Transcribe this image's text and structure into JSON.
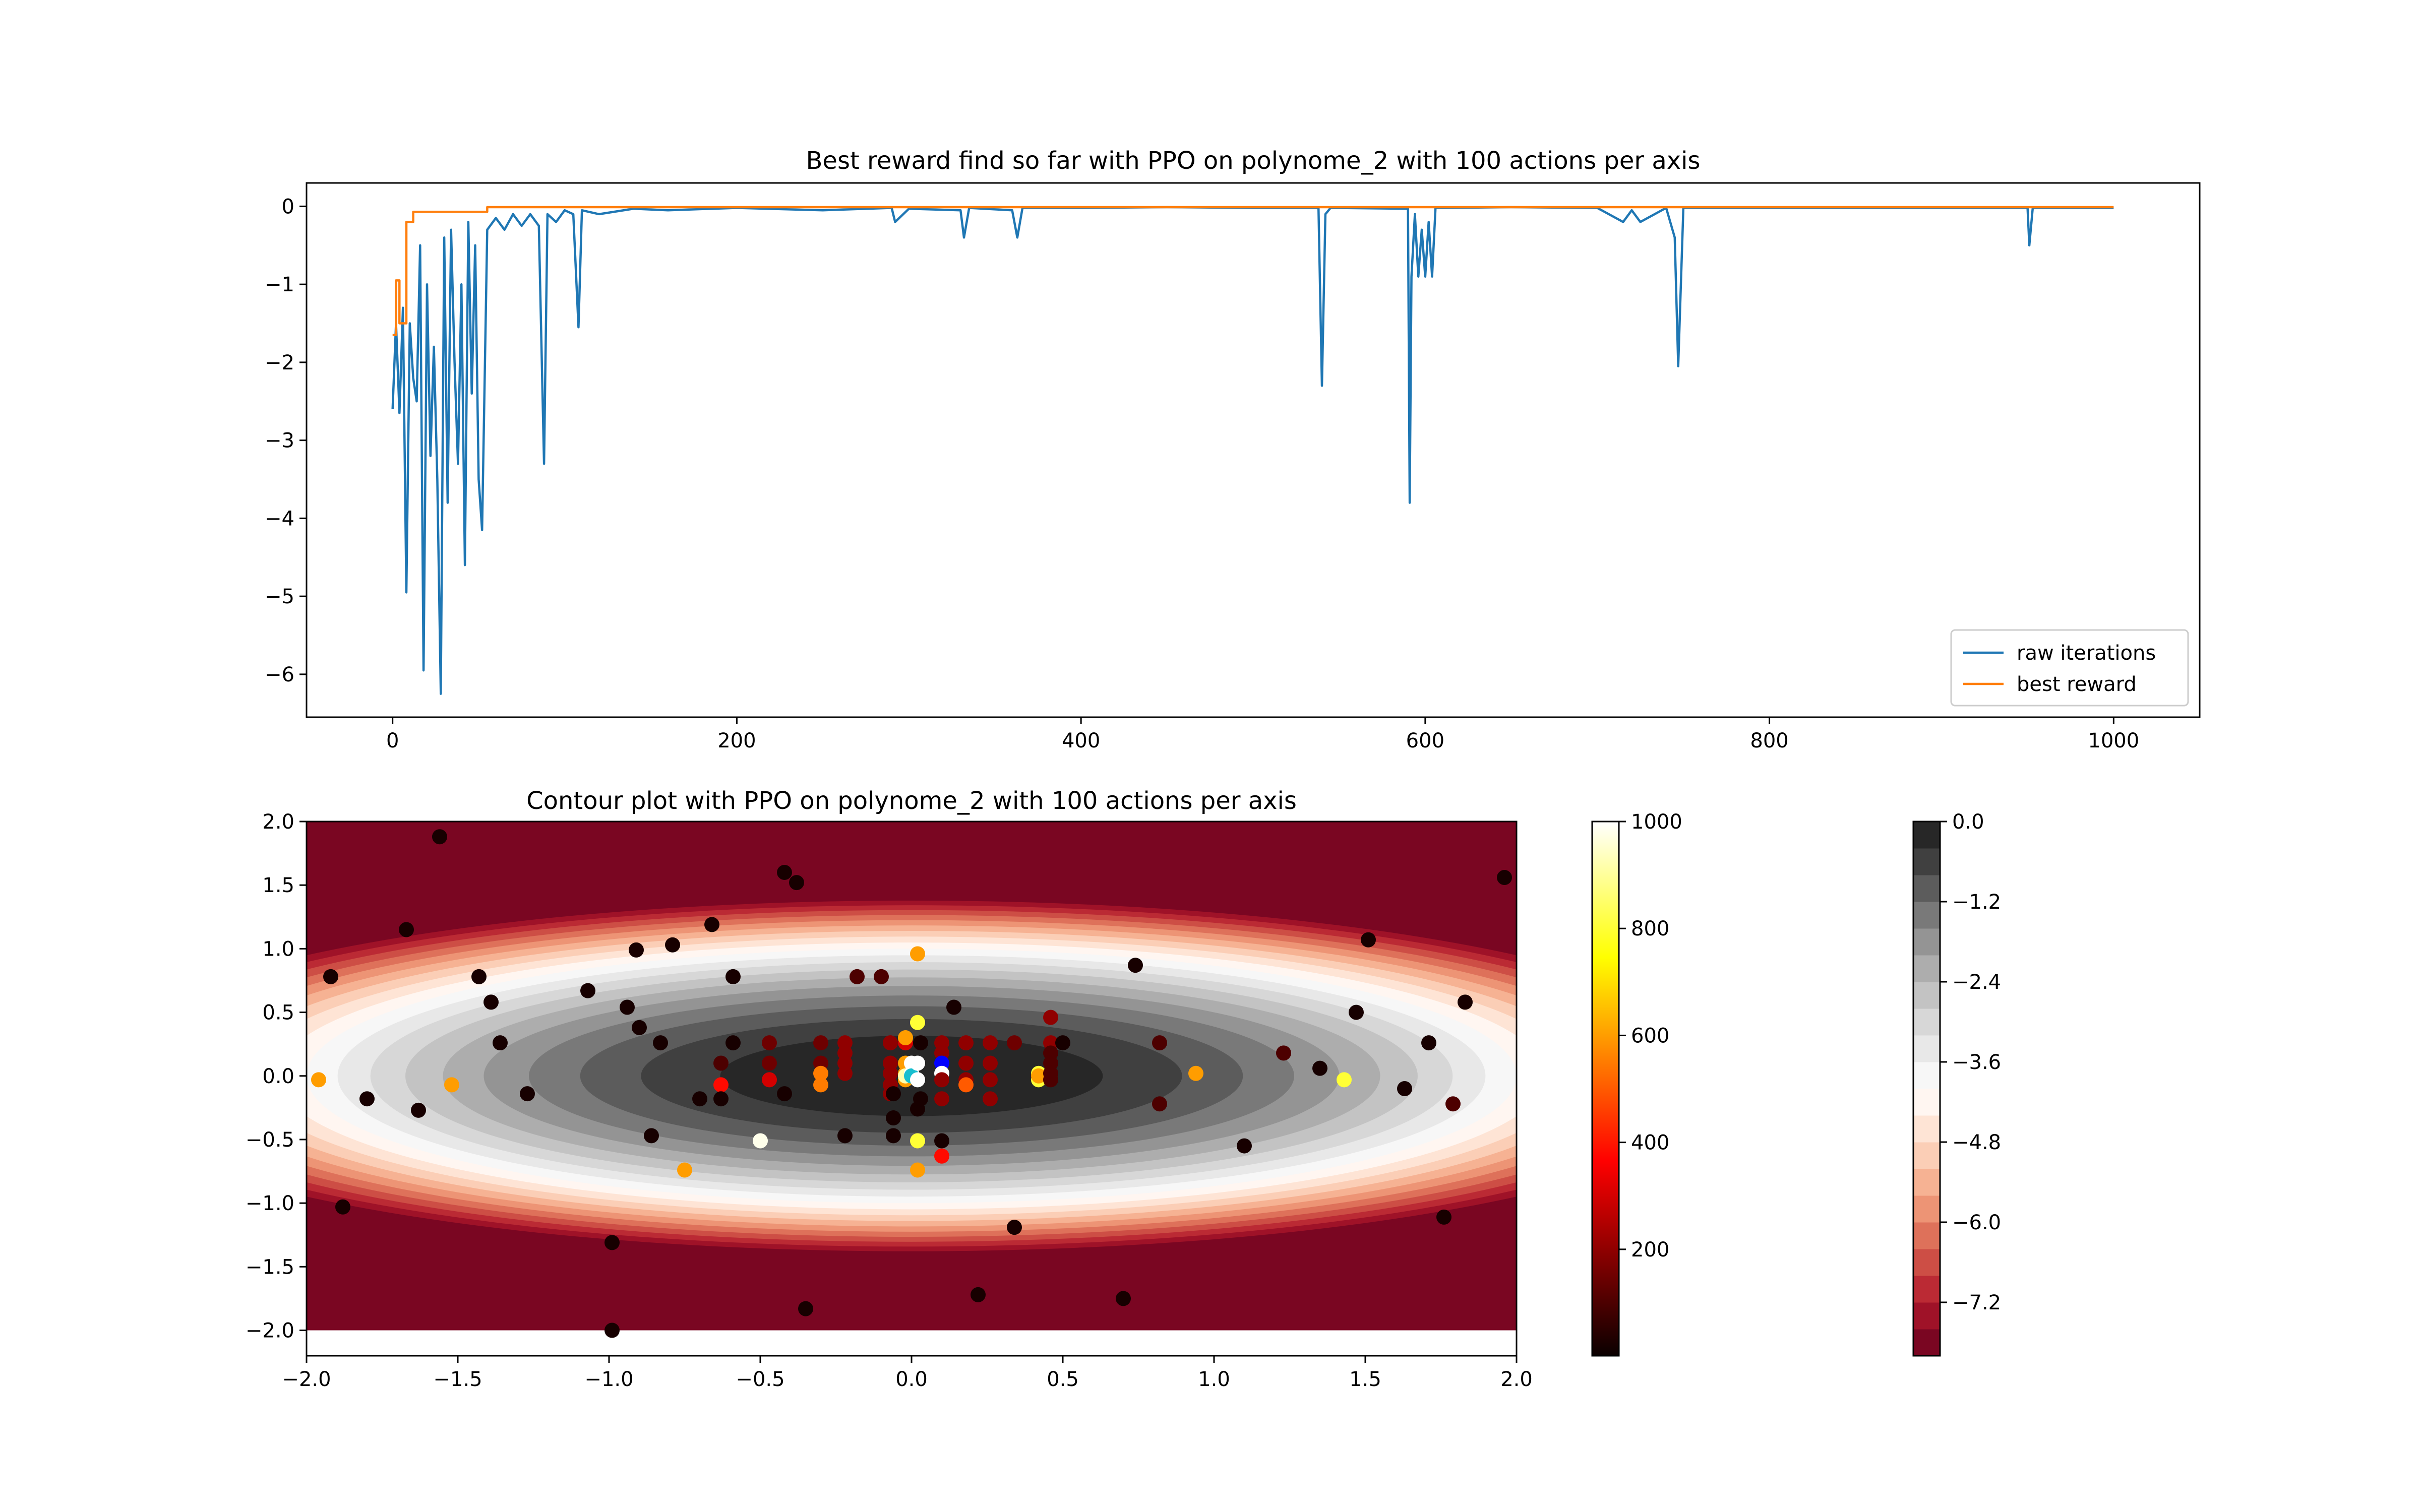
{
  "chart_data": [
    {
      "type": "line",
      "title": "Best reward find so far with PPO on polynome_2 with 100 actions per axis",
      "xlabel": "",
      "ylabel": "",
      "xlim": [
        -50,
        1050
      ],
      "ylim": [
        -6.55,
        0.3
      ],
      "xticks": [
        0,
        200,
        400,
        600,
        800,
        1000
      ],
      "yticks": [
        0,
        -1,
        -2,
        -3,
        -4,
        -5,
        -6
      ],
      "grid": false,
      "legend_position": "lower right",
      "series": [
        {
          "name": "raw iterations",
          "color": "#1f77b4",
          "x": [
            0,
            2,
            4,
            6,
            8,
            10,
            12,
            14,
            16,
            18,
            20,
            22,
            24,
            26,
            28,
            30,
            32,
            34,
            36,
            38,
            40,
            42,
            44,
            46,
            48,
            50,
            52,
            55,
            60,
            65,
            70,
            75,
            80,
            85,
            88,
            90,
            95,
            100,
            105,
            108,
            110,
            120,
            140,
            160,
            200,
            250,
            290,
            292,
            300,
            330,
            332,
            335,
            360,
            363,
            366,
            400,
            450,
            500,
            538,
            540,
            542,
            545,
            590,
            591,
            592,
            594,
            596,
            598,
            600,
            602,
            604,
            606,
            610,
            650,
            700,
            715,
            720,
            725,
            740,
            745,
            747,
            750,
            800,
            900,
            950,
            951,
            953,
            1000
          ],
          "y": [
            -2.6,
            -1.5,
            -2.65,
            -1.3,
            -4.95,
            -1.5,
            -2.2,
            -2.5,
            -0.5,
            -5.95,
            -1.0,
            -3.2,
            -1.8,
            -3.5,
            -6.25,
            -0.4,
            -3.8,
            -0.3,
            -2.0,
            -3.3,
            -1.0,
            -4.6,
            -0.2,
            -2.4,
            -0.5,
            -3.5,
            -4.15,
            -0.3,
            -0.15,
            -0.3,
            -0.1,
            -0.25,
            -0.1,
            -0.25,
            -3.3,
            -0.1,
            -0.2,
            -0.05,
            -0.1,
            -1.55,
            -0.05,
            -0.1,
            -0.03,
            -0.05,
            -0.02,
            -0.05,
            -0.02,
            -0.2,
            -0.03,
            -0.05,
            -0.4,
            -0.02,
            -0.05,
            -0.4,
            -0.02,
            -0.02,
            -0.01,
            -0.02,
            -0.02,
            -2.3,
            -0.1,
            -0.02,
            -0.03,
            -3.8,
            -0.9,
            -0.1,
            -0.9,
            -0.3,
            -0.9,
            -0.2,
            -0.9,
            -0.02,
            -0.02,
            -0.01,
            -0.02,
            -0.2,
            -0.05,
            -0.2,
            -0.02,
            -0.4,
            -2.05,
            -0.02,
            -0.02,
            -0.02,
            -0.02,
            -0.5,
            -0.02,
            -0.02
          ]
        },
        {
          "name": "best reward",
          "color": "#ff7f0e",
          "x": [
            0,
            2,
            2,
            4,
            4,
            8,
            8,
            12,
            12,
            55,
            55,
            1000
          ],
          "y": [
            -1.65,
            -1.65,
            -0.95,
            -0.95,
            -1.5,
            -1.5,
            -0.2,
            -0.2,
            -0.07,
            -0.07,
            -0.01,
            -0.01
          ]
        }
      ]
    },
    {
      "type": "scatter",
      "title": "Contour plot with PPO on polynome_2 with 100 actions per axis",
      "xlabel": "",
      "ylabel": "",
      "xlim": [
        -2.0,
        2.0
      ],
      "ylim": [
        -2.2,
        2.0
      ],
      "xticks": [
        -2.0,
        -1.5,
        -1.0,
        -0.5,
        0.0,
        0.5,
        1.0,
        1.5,
        2.0
      ],
      "yticks": [
        2.0,
        1.5,
        1.0,
        0.5,
        0.0,
        -0.5,
        -1.0,
        -1.5,
        -2.0
      ],
      "grid": false,
      "contour": {
        "function": "-(x^2 + 4*y^2)",
        "levels": [
          -8.0,
          -7.6,
          -7.2,
          -6.8,
          -6.4,
          -6.0,
          -5.6,
          -5.2,
          -4.8,
          -4.4,
          -4.0,
          -3.6,
          -3.2,
          -2.8,
          -2.4,
          -2.0,
          -1.6,
          -1.2,
          -0.8,
          -0.4,
          0.0
        ],
        "colormap": "RdGy"
      },
      "points": [
        {
          "x": -1.56,
          "y": 1.88,
          "c": 20
        },
        {
          "x": -1.67,
          "y": 1.15,
          "c": 20
        },
        {
          "x": -1.92,
          "y": 0.78,
          "c": 20
        },
        {
          "x": -1.96,
          "y": -0.03,
          "c": 600
        },
        {
          "x": -1.8,
          "y": -0.18,
          "c": 20
        },
        {
          "x": -1.88,
          "y": -1.03,
          "c": 20
        },
        {
          "x": -1.63,
          "y": -0.27,
          "c": 20
        },
        {
          "x": -1.52,
          "y": -0.07,
          "c": 600
        },
        {
          "x": -1.43,
          "y": 0.78,
          "c": 20
        },
        {
          "x": -1.39,
          "y": 0.58,
          "c": 20
        },
        {
          "x": -1.36,
          "y": 0.26,
          "c": 20
        },
        {
          "x": -1.27,
          "y": -0.14,
          "c": 20
        },
        {
          "x": -1.07,
          "y": 0.67,
          "c": 20
        },
        {
          "x": -0.99,
          "y": -1.31,
          "c": 20
        },
        {
          "x": -0.99,
          "y": -2.0,
          "c": 20
        },
        {
          "x": -0.94,
          "y": 0.54,
          "c": 20
        },
        {
          "x": -0.91,
          "y": 0.99,
          "c": 20
        },
        {
          "x": -0.9,
          "y": 0.38,
          "c": 20
        },
        {
          "x": -0.86,
          "y": -0.47,
          "c": 20
        },
        {
          "x": -0.83,
          "y": 0.26,
          "c": 20
        },
        {
          "x": -0.79,
          "y": 1.03,
          "c": 20
        },
        {
          "x": -0.75,
          "y": -0.74,
          "c": 600
        },
        {
          "x": -0.7,
          "y": -0.18,
          "c": 20
        },
        {
          "x": -0.66,
          "y": 1.19,
          "c": 20
        },
        {
          "x": -0.63,
          "y": -0.07,
          "c": 380
        },
        {
          "x": -0.63,
          "y": -0.18,
          "c": 20
        },
        {
          "x": -0.63,
          "y": 0.1,
          "c": 100
        },
        {
          "x": -0.59,
          "y": 0.78,
          "c": 20
        },
        {
          "x": -0.59,
          "y": 0.26,
          "c": 20
        },
        {
          "x": -0.5,
          "y": -0.51,
          "c": 980
        },
        {
          "x": -0.47,
          "y": 0.26,
          "c": 150
        },
        {
          "x": -0.47,
          "y": 0.1,
          "c": 150
        },
        {
          "x": -0.47,
          "y": -0.03,
          "c": 300
        },
        {
          "x": -0.42,
          "y": -0.14,
          "c": 20
        },
        {
          "x": -0.42,
          "y": 1.6,
          "c": 20
        },
        {
          "x": -0.38,
          "y": 1.52,
          "c": 20
        },
        {
          "x": -0.35,
          "y": -1.83,
          "c": 20
        },
        {
          "x": -0.3,
          "y": 0.26,
          "c": 150
        },
        {
          "x": -0.3,
          "y": 0.1,
          "c": 150
        },
        {
          "x": -0.3,
          "y": 0.02,
          "c": 550
        },
        {
          "x": -0.3,
          "y": -0.07,
          "c": 550
        },
        {
          "x": -0.22,
          "y": 0.26,
          "c": 200
        },
        {
          "x": -0.22,
          "y": 0.18,
          "c": 200
        },
        {
          "x": -0.22,
          "y": 0.1,
          "c": 200
        },
        {
          "x": -0.22,
          "y": 0.02,
          "c": 200
        },
        {
          "x": -0.22,
          "y": -0.47,
          "c": 20
        },
        {
          "x": -0.18,
          "y": 0.78,
          "c": 100
        },
        {
          "x": -0.1,
          "y": 0.78,
          "c": 100
        },
        {
          "x": -0.07,
          "y": 0.26,
          "c": 200
        },
        {
          "x": -0.07,
          "y": 0.1,
          "c": 200
        },
        {
          "x": -0.07,
          "y": 0.02,
          "c": 200
        },
        {
          "x": -0.07,
          "y": -0.07,
          "c": 200
        },
        {
          "x": -0.07,
          "y": -0.14,
          "c": 200
        },
        {
          "x": -0.06,
          "y": -0.33,
          "c": 20
        },
        {
          "x": -0.06,
          "y": -0.47,
          "c": 20
        },
        {
          "x": -0.06,
          "y": -0.14,
          "c": 20
        },
        {
          "x": -0.02,
          "y": 0.26,
          "c": 300
        },
        {
          "x": -0.02,
          "y": 0.1,
          "c": 600
        },
        {
          "x": -0.02,
          "y": 0.02,
          "c": 600
        },
        {
          "x": -0.02,
          "y": -0.03,
          "c": 600
        },
        {
          "x": -0.02,
          "y": 0.3,
          "c": 600
        },
        {
          "x": -0.02,
          "y": 0.0,
          "c": 920
        },
        {
          "x": 0.0,
          "y": 0.1,
          "c": 1000
        },
        {
          "x": 0.0,
          "y": 0.02,
          "c": 1000
        },
        {
          "x": 0.0,
          "y": 0.0,
          "c": "cyan"
        },
        {
          "x": 0.02,
          "y": 0.96,
          "c": 600
        },
        {
          "x": 0.02,
          "y": 0.42,
          "c": 800
        },
        {
          "x": 0.02,
          "y": 0.1,
          "c": 1000
        },
        {
          "x": 0.02,
          "y": -0.03,
          "c": 1000
        },
        {
          "x": 0.02,
          "y": -0.51,
          "c": 800
        },
        {
          "x": 0.02,
          "y": -0.74,
          "c": 600
        },
        {
          "x": 0.02,
          "y": -0.26,
          "c": 20
        },
        {
          "x": 0.03,
          "y": 0.26,
          "c": 20
        },
        {
          "x": 0.03,
          "y": -0.18,
          "c": 20
        },
        {
          "x": 0.1,
          "y": 0.26,
          "c": 200
        },
        {
          "x": 0.1,
          "y": 0.18,
          "c": 200
        },
        {
          "x": 0.1,
          "y": 0.1,
          "c": "blue"
        },
        {
          "x": 0.1,
          "y": 0.02,
          "c": 1000
        },
        {
          "x": 0.1,
          "y": -0.03,
          "c": 200
        },
        {
          "x": 0.1,
          "y": -0.18,
          "c": 200
        },
        {
          "x": 0.1,
          "y": -0.51,
          "c": 20
        },
        {
          "x": 0.1,
          "y": -0.63,
          "c": 380
        },
        {
          "x": 0.14,
          "y": 0.54,
          "c": 20
        },
        {
          "x": 0.18,
          "y": 0.26,
          "c": 200
        },
        {
          "x": 0.18,
          "y": 0.1,
          "c": 200
        },
        {
          "x": 0.18,
          "y": -0.03,
          "c": 200
        },
        {
          "x": 0.18,
          "y": -0.07,
          "c": 500
        },
        {
          "x": 0.22,
          "y": -1.72,
          "c": 20
        },
        {
          "x": 0.26,
          "y": 0.26,
          "c": 200
        },
        {
          "x": 0.26,
          "y": 0.1,
          "c": 200
        },
        {
          "x": 0.26,
          "y": -0.03,
          "c": 200
        },
        {
          "x": 0.26,
          "y": -0.18,
          "c": 200
        },
        {
          "x": 0.34,
          "y": 0.26,
          "c": 150
        },
        {
          "x": 0.34,
          "y": -1.19,
          "c": 20
        },
        {
          "x": 0.42,
          "y": 0.02,
          "c": 800
        },
        {
          "x": 0.42,
          "y": -0.03,
          "c": 800
        },
        {
          "x": 0.42,
          "y": 0.0,
          "c": 600
        },
        {
          "x": 0.46,
          "y": 0.46,
          "c": 200
        },
        {
          "x": 0.46,
          "y": 0.26,
          "c": 200
        },
        {
          "x": 0.46,
          "y": 0.18,
          "c": 100
        },
        {
          "x": 0.46,
          "y": 0.1,
          "c": 100
        },
        {
          "x": 0.46,
          "y": 0.02,
          "c": 100
        },
        {
          "x": 0.46,
          "y": -0.03,
          "c": 100
        },
        {
          "x": 0.5,
          "y": 0.26,
          "c": 20
        },
        {
          "x": 0.7,
          "y": -1.75,
          "c": 20
        },
        {
          "x": 0.74,
          "y": 0.87,
          "c": 20
        },
        {
          "x": 0.82,
          "y": 0.26,
          "c": 100
        },
        {
          "x": 0.82,
          "y": -0.22,
          "c": 100
        },
        {
          "x": 0.94,
          "y": 0.02,
          "c": 600
        },
        {
          "x": 1.1,
          "y": -0.55,
          "c": 20
        },
        {
          "x": 1.23,
          "y": 0.18,
          "c": 100
        },
        {
          "x": 1.35,
          "y": 0.06,
          "c": 20
        },
        {
          "x": 1.43,
          "y": -0.03,
          "c": 800
        },
        {
          "x": 1.47,
          "y": 0.5,
          "c": 20
        },
        {
          "x": 1.51,
          "y": 1.07,
          "c": 20
        },
        {
          "x": 1.63,
          "y": -0.1,
          "c": 20
        },
        {
          "x": 1.71,
          "y": 0.26,
          "c": 20
        },
        {
          "x": 1.76,
          "y": -1.11,
          "c": 20
        },
        {
          "x": 1.79,
          "y": -0.22,
          "c": 100
        },
        {
          "x": 1.83,
          "y": 0.58,
          "c": 20
        },
        {
          "x": 1.96,
          "y": 1.56,
          "c": 20
        }
      ]
    },
    {
      "type": "colorbar",
      "colormap": "hot",
      "range": [
        1,
        1000
      ],
      "ticks": [
        1000,
        800,
        600,
        400,
        200
      ]
    },
    {
      "type": "colorbar",
      "colormap": "RdGy",
      "range": [
        -8.0,
        0.0
      ],
      "ticks": [
        0.0,
        -1.2,
        -2.4,
        -3.6,
        -4.8,
        -6.0,
        -7.2
      ]
    }
  ]
}
